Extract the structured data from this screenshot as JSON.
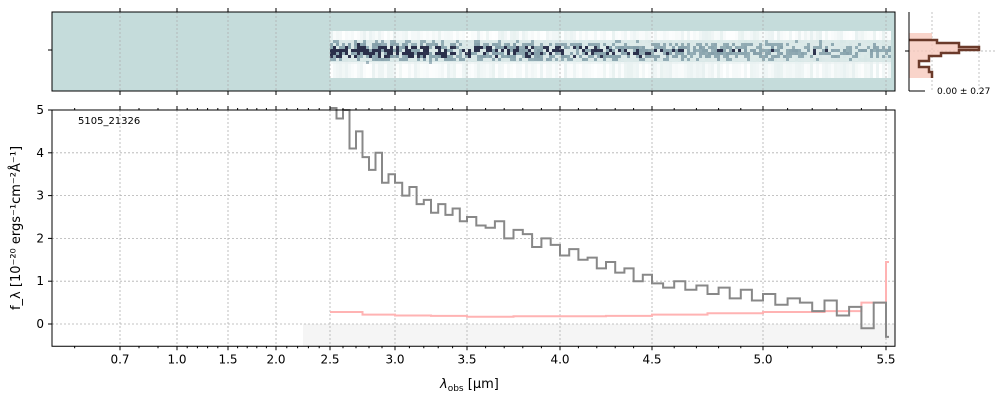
{
  "chart_data": {
    "type": "line",
    "label": "5105_21326",
    "xlabel_main": "λ",
    "xlabel_sub": "obs",
    "xlabel_unit": " [μm]",
    "ylabel": "f_λ [10⁻²⁰ ergs⁻¹cm⁻²Å⁻¹]",
    "xticks": [
      0.7,
      1.0,
      1.5,
      2.0,
      2.5,
      3.0,
      3.5,
      4.0,
      4.5,
      5.0,
      5.5
    ],
    "xtick_labels": [
      "0.7",
      "1.0",
      "1.5",
      "2.0",
      "2.5",
      "3.0",
      "3.5",
      "4.0",
      "4.5",
      "5.0",
      "5.5"
    ],
    "yticks": [
      0,
      1,
      2,
      3,
      4,
      5
    ],
    "ytick_labels": [
      "0",
      "1",
      "2",
      "3",
      "4",
      "5"
    ],
    "ylim": [
      -0.52,
      5
    ],
    "xlim": [
      0.55,
      5.52
    ],
    "grid": true,
    "series": [
      {
        "role": "flux",
        "color": "#888888",
        "x_start": 2.5,
        "x_step": 0.05,
        "values": [
          5.3,
          4.8,
          5.0,
          4.1,
          4.5,
          3.9,
          3.6,
          4.0,
          3.3,
          3.5,
          3.3,
          3.0,
          3.2,
          2.8,
          2.9,
          2.6,
          2.8,
          2.55,
          2.7,
          2.4,
          2.5,
          2.3,
          2.25,
          2.4,
          2.0,
          2.2,
          2.1,
          1.8,
          2.0,
          1.85,
          1.6,
          1.75,
          1.5,
          1.55,
          1.3,
          1.45,
          1.2,
          1.3,
          1.0,
          1.15,
          0.95,
          0.85,
          1.0,
          0.8,
          0.9,
          0.7,
          0.85,
          0.6,
          0.8,
          0.55,
          0.7,
          0.45,
          0.6,
          0.5,
          0.3,
          0.55,
          0.2,
          0.4,
          -0.1,
          0.5,
          -0.3
        ]
      },
      {
        "role": "error",
        "color": "#ffb3b3",
        "x": [
          2.5,
          2.75,
          3.0,
          3.25,
          3.5,
          3.75,
          4.0,
          4.25,
          4.5,
          4.75,
          5.0,
          5.25,
          5.4,
          5.5
        ],
        "values": [
          0.28,
          0.22,
          0.2,
          0.19,
          0.17,
          0.18,
          0.18,
          0.19,
          0.22,
          0.25,
          0.28,
          0.3,
          0.5,
          1.45
        ]
      }
    ],
    "shaded_band": {
      "x": [
        2.25,
        5.52
      ],
      "y": [
        -0.52,
        0
      ],
      "color": "#f5f5f5"
    },
    "spectrum2d": {
      "x_start": 2.5,
      "colormap": [
        "#c5dcdb",
        "#ffffff",
        "#1a1a3a"
      ]
    },
    "profile_panel": {
      "label": "0.00 ± 0.27",
      "line_color": "#6b3a2a",
      "fill_color": "#f7c9bd"
    }
  }
}
